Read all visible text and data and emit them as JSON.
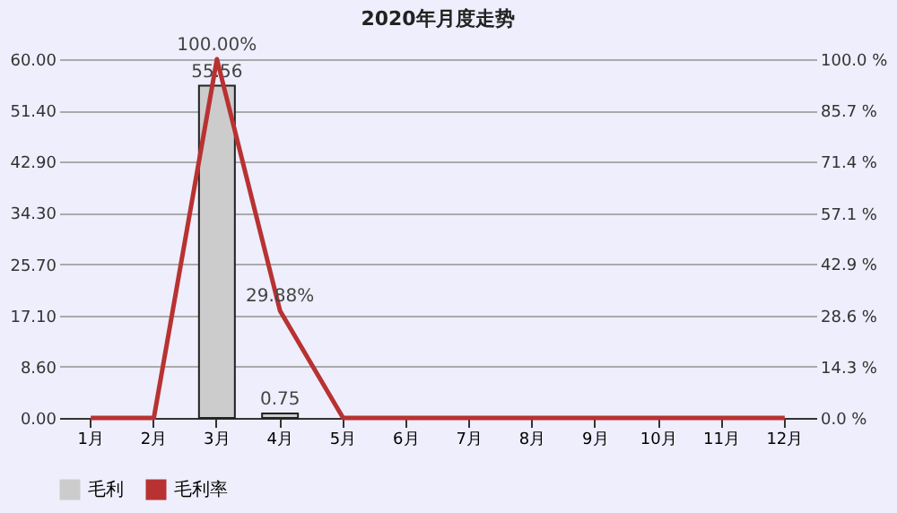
{
  "chart_data": {
    "type": "bar",
    "title": "2020年月度走势",
    "categories": [
      "1月",
      "2月",
      "3月",
      "4月",
      "5月",
      "6月",
      "7月",
      "8月",
      "9月",
      "10月",
      "11月",
      "12月"
    ],
    "series": [
      {
        "name": "毛利",
        "color": "#cccccc",
        "values": [
          0,
          0,
          55.56,
          0.75,
          0,
          0,
          0,
          0,
          0,
          0,
          0,
          0
        ],
        "value_labels": [
          null,
          null,
          "55.56",
          "0.75",
          null,
          null,
          null,
          null,
          null,
          null,
          null,
          null
        ]
      },
      {
        "name": "毛利率",
        "type": "line",
        "axis": "y2",
        "color": "#b83232",
        "values": [
          0,
          0,
          100,
          29.88,
          0,
          0,
          0,
          0,
          0,
          0,
          0,
          0
        ],
        "value_labels": [
          null,
          null,
          "100.00%",
          "29.88%",
          null,
          null,
          null,
          null,
          null,
          null,
          null,
          null
        ]
      }
    ],
    "ylim": [
      0,
      60
    ],
    "yticks": [
      {
        "value": 0,
        "label": "0.00"
      },
      {
        "value": 8.6,
        "label": "8.60"
      },
      {
        "value": 17.1,
        "label": "17.10"
      },
      {
        "value": 25.7,
        "label": "25.70"
      },
      {
        "value": 34.3,
        "label": "34.30"
      },
      {
        "value": 42.9,
        "label": "42.90"
      },
      {
        "value": 51.4,
        "label": "51.40"
      },
      {
        "value": 60,
        "label": "60.00"
      }
    ],
    "y2lim": [
      0,
      100
    ],
    "y2ticks": [
      {
        "value": 0,
        "label": "0.0 %"
      },
      {
        "value": 14.3,
        "label": "14.3 %"
      },
      {
        "value": 28.6,
        "label": "28.6 %"
      },
      {
        "value": 42.9,
        "label": "42.9 %"
      },
      {
        "value": 57.1,
        "label": "57.1 %"
      },
      {
        "value": 71.4,
        "label": "71.4 %"
      },
      {
        "value": 85.7,
        "label": "85.7 %"
      },
      {
        "value": 100,
        "label": "100.0 %"
      }
    ],
    "grid": "y",
    "legend": "bottom",
    "marker": "none",
    "line_style": "solid"
  }
}
